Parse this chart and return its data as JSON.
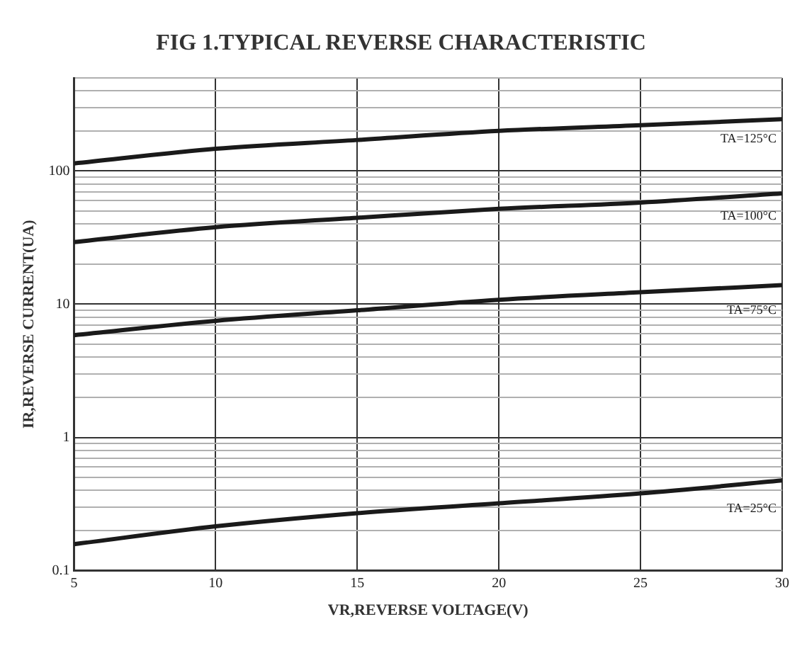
{
  "chart_data": {
    "type": "line",
    "title": "FIG 1.TYPICAL REVERSE CHARACTERISTIC",
    "xlabel": "VR,REVERSE VOLTAGE(V)",
    "ylabel": "IR,REVERSE CURRENT(UA)",
    "x": [
      5,
      10,
      15,
      20,
      25,
      30
    ],
    "series": [
      {
        "name": "TA=125°C",
        "color": "#1a1a1a",
        "values": [
          114,
          147,
          171,
          200,
          221,
          245
        ]
      },
      {
        "name": "TA=100°C",
        "color": "#1a1a1a",
        "values": [
          29.3,
          37.9,
          44.6,
          52,
          58,
          68
        ]
      },
      {
        "name": "TA=75°C",
        "color": "#1a1a1a",
        "values": [
          5.85,
          7.5,
          9.0,
          10.8,
          12.3,
          13.9
        ]
      },
      {
        "name": "TA=25°C",
        "color": "#1a1a1a",
        "values": [
          0.158,
          0.215,
          0.27,
          0.32,
          0.38,
          0.475
        ]
      }
    ],
    "log": "y",
    "grid": true,
    "legend": false,
    "marker": "none",
    "line_style": "solid",
    "xlim": [
      5,
      30
    ],
    "xticks": [
      5,
      10,
      15,
      20,
      25,
      30
    ],
    "ylim": [
      0.1,
      500
    ],
    "yticks": [
      0.1,
      {
        "value": 0.2,
        "label": null
      },
      {
        "value": 0.3,
        "label": null
      },
      {
        "value": 0.4,
        "label": null
      },
      {
        "value": 0.5,
        "label": null
      },
      {
        "value": 0.6,
        "label": null
      },
      {
        "value": 0.7,
        "label": null
      },
      {
        "value": 0.8,
        "label": null
      },
      {
        "value": 0.9,
        "label": null
      },
      1,
      {
        "value": 2,
        "label": null
      },
      {
        "value": 3,
        "label": null
      },
      {
        "value": 4,
        "label": null
      },
      {
        "value": 5,
        "label": null
      },
      {
        "value": 6,
        "label": null
      },
      {
        "value": 7,
        "label": null
      },
      {
        "value": 8,
        "label": null
      },
      {
        "value": 9,
        "label": null
      },
      10,
      {
        "value": 20,
        "label": null
      },
      {
        "value": 30,
        "label": null
      },
      {
        "value": 40,
        "label": null
      },
      {
        "value": 50,
        "label": null
      },
      {
        "value": 60,
        "label": null
      },
      {
        "value": 70,
        "label": null
      },
      {
        "value": 80,
        "label": null
      },
      {
        "value": 90,
        "label": null
      },
      100,
      {
        "value": 200,
        "label": null
      },
      {
        "value": 300,
        "label": null
      },
      {
        "value": 400,
        "label": null
      },
      {
        "value": 500,
        "label": null
      }
    ]
  }
}
